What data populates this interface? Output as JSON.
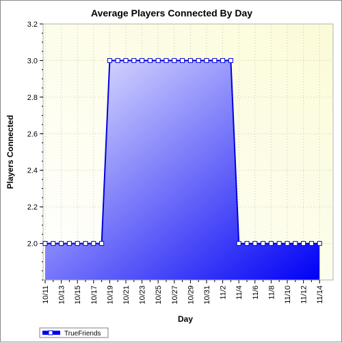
{
  "chart_data": {
    "type": "area",
    "title": "Average Players Connected By Day",
    "xlabel": "Day",
    "ylabel": "Players Connected",
    "ylim": [
      1.8,
      3.2
    ],
    "yticks": [
      2.0,
      2.2,
      2.4,
      2.6,
      2.8,
      3.0,
      3.2
    ],
    "x": [
      "10/11",
      "10/12",
      "10/13",
      "10/14",
      "10/15",
      "10/16",
      "10/17",
      "10/18",
      "10/19",
      "10/20",
      "10/21",
      "10/22",
      "10/23",
      "10/24",
      "10/25",
      "10/26",
      "10/27",
      "10/28",
      "10/29",
      "10/30",
      "10/31",
      "11/1",
      "11/2",
      "11/3",
      "11/4",
      "11/5",
      "11/6",
      "11/7",
      "11/8",
      "11/9",
      "11/10",
      "11/11",
      "11/12",
      "11/13",
      "11/14"
    ],
    "xtick_labels": [
      "10/11",
      "10/13",
      "10/15",
      "10/17",
      "10/19",
      "10/21",
      "10/23",
      "10/25",
      "10/27",
      "10/29",
      "10/31",
      "11/2",
      "11/4",
      "11/6",
      "11/8",
      "11/10",
      "11/12",
      "11/14"
    ],
    "series": [
      {
        "name": "TrueFriends",
        "values": [
          2.0,
          2.0,
          2.0,
          2.0,
          2.0,
          2.0,
          2.0,
          2.0,
          3.0,
          3.0,
          3.0,
          3.0,
          3.0,
          3.0,
          3.0,
          3.0,
          3.0,
          3.0,
          3.0,
          3.0,
          3.0,
          3.0,
          3.0,
          3.0,
          2.0,
          2.0,
          2.0,
          2.0,
          2.0,
          2.0,
          2.0,
          2.0,
          2.0,
          2.0,
          2.0
        ]
      }
    ],
    "grid": true,
    "legend": "bottom-left",
    "colors": {
      "plot_bg_light": "#ffffff",
      "plot_bg_dark": "#fbfbd8",
      "fill_light": "#ececff",
      "fill_dark": "#0000f5",
      "line": "#0000e0",
      "marker_fill": "#ffffff",
      "marker_stroke": "#0000d0",
      "grid": "#c8c8a0"
    }
  }
}
